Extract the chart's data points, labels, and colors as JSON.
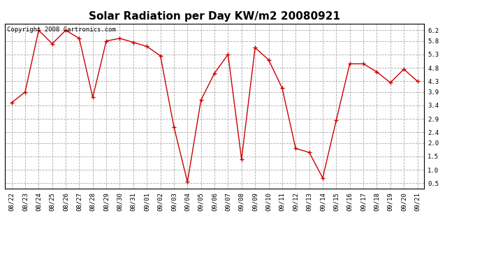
{
  "title": "Solar Radiation per Day KW/m2 20080921",
  "copyright_text": "Copyright 2008 Cartronics.com",
  "labels": [
    "08/22",
    "08/23",
    "08/24",
    "08/25",
    "08/26",
    "08/27",
    "08/28",
    "08/29",
    "08/30",
    "08/31",
    "09/01",
    "09/02",
    "09/03",
    "09/04",
    "09/05",
    "09/06",
    "09/07",
    "09/08",
    "09/09",
    "09/10",
    "09/11",
    "09/12",
    "09/13",
    "09/14",
    "09/15",
    "09/16",
    "09/17",
    "09/18",
    "09/19",
    "09/20",
    "09/21"
  ],
  "values": [
    3.5,
    3.9,
    6.2,
    5.7,
    6.2,
    5.9,
    3.7,
    5.8,
    5.9,
    5.75,
    5.6,
    5.25,
    2.6,
    0.55,
    3.6,
    4.6,
    5.3,
    1.4,
    5.55,
    5.1,
    4.05,
    1.8,
    1.65,
    0.7,
    2.85,
    4.95,
    4.95,
    4.65,
    4.25,
    4.75,
    4.3
  ],
  "line_color": "#cc0000",
  "marker": "+",
  "marker_size": 4,
  "marker_color": "#cc0000",
  "background_color": "#ffffff",
  "grid_color": "#aaaaaa",
  "ylim": [
    0.3,
    6.45
  ],
  "yticks": [
    0.5,
    1.0,
    1.5,
    2.0,
    2.4,
    2.9,
    3.4,
    3.9,
    4.3,
    4.8,
    5.3,
    5.8,
    6.2
  ],
  "title_fontsize": 11,
  "tick_fontsize": 6.5,
  "copyright_fontsize": 6.5
}
